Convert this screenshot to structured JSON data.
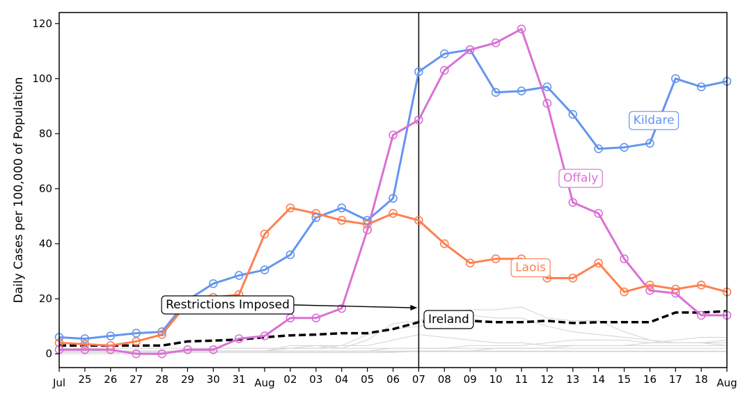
{
  "chart_data": {
    "type": "line",
    "title": "",
    "xlabel": "",
    "ylabel": "Daily Cases per 100,000 of Population",
    "ylim": [
      -5,
      124
    ],
    "yticks": [
      0,
      20,
      40,
      60,
      80,
      100,
      120
    ],
    "grid": false,
    "x": [
      "24 Jul",
      "25 Jul",
      "26 Jul",
      "27 Jul",
      "28 Jul",
      "29 Jul",
      "30 Jul",
      "31 Jul",
      "01 Aug",
      "02 Aug",
      "03 Aug",
      "04 Aug",
      "05 Aug",
      "06 Aug",
      "07 Aug",
      "08 Aug",
      "09 Aug",
      "10 Aug",
      "11 Aug",
      "12 Aug",
      "13 Aug",
      "14 Aug",
      "15 Aug",
      "16 Aug",
      "17 Aug",
      "18 Aug",
      "19 Aug"
    ],
    "xtick_labels": [
      "Jul",
      "25",
      "26",
      "27",
      "28",
      "29",
      "30",
      "31",
      "Aug",
      "02",
      "03",
      "04",
      "05",
      "06",
      "07",
      "08",
      "09",
      "10",
      "11",
      "12",
      "13",
      "14",
      "15",
      "16",
      "17",
      "18",
      "Aug"
    ],
    "series": [
      {
        "name": "Kildare",
        "color": "#6495ED",
        "style": "solid-markers",
        "values": [
          6,
          5.5,
          6.5,
          7.5,
          8,
          19.5,
          25.5,
          28.5,
          30.5,
          36,
          49.5,
          53,
          48.5,
          56.5,
          102.5,
          109,
          110.5,
          95,
          95.5,
          97,
          87,
          74.5,
          75,
          76.5,
          100,
          97,
          99
        ]
      },
      {
        "name": "Laois",
        "color": "#FF7F50",
        "style": "solid-markers",
        "values": [
          4,
          3.5,
          3,
          4.5,
          7,
          18.5,
          20.5,
          21.5,
          43.5,
          53,
          51,
          48.5,
          47,
          51,
          48.5,
          40,
          33,
          34.5,
          34.5,
          27.5,
          27.5,
          33,
          22.5,
          25,
          23.5,
          25,
          22.5
        ]
      },
      {
        "name": "Offaly",
        "color": "#DA70D6",
        "style": "solid-markers",
        "values": [
          1.5,
          1.5,
          1.5,
          0,
          0,
          1.5,
          1.5,
          5.5,
          6.5,
          13,
          13,
          16.5,
          45,
          79.5,
          85,
          103,
          110.5,
          113,
          118,
          91,
          55,
          51,
          34.5,
          23,
          22,
          14,
          14
        ]
      },
      {
        "name": "Ireland",
        "color": "#000000",
        "style": "dashed",
        "values": [
          3,
          3,
          3,
          3,
          3,
          4.5,
          4.8,
          5.2,
          6,
          6.7,
          7,
          7.5,
          7.5,
          9,
          11.5,
          12.5,
          12,
          11.5,
          11.5,
          12,
          11.2,
          11.5,
          11.5,
          11.5,
          15,
          15,
          15.5
        ]
      }
    ],
    "background_series_color": "#D3D3D3",
    "background_series": [
      [
        1,
        1,
        1,
        1,
        1,
        1,
        1,
        1,
        1,
        1,
        1,
        1,
        1,
        1,
        1,
        1,
        1,
        1,
        1,
        1,
        1,
        1,
        1,
        1,
        1,
        1,
        1
      ],
      [
        0.5,
        0.5,
        0.5,
        0.5,
        0.5,
        0.5,
        0.5,
        0.5,
        0.5,
        0.5,
        0.5,
        0.5,
        0.5,
        0.8,
        0.8,
        0.8,
        0.8,
        0.8,
        0.8,
        0.8,
        0.8,
        0.8,
        0.8,
        0.8,
        0.8,
        0.8,
        0.8
      ],
      [
        2,
        2,
        2,
        2,
        2,
        2,
        2,
        2,
        2,
        2,
        2,
        2,
        2,
        2,
        2,
        2,
        2,
        2,
        2,
        2,
        2,
        2,
        2,
        2,
        2,
        2,
        2
      ],
      [
        1,
        1,
        1,
        1,
        1,
        1,
        1,
        1,
        1,
        3,
        3,
        3,
        3,
        5,
        7,
        6,
        5,
        4,
        4,
        3,
        3,
        3,
        3,
        3,
        3,
        3,
        3
      ],
      [
        1,
        1,
        1,
        1,
        1,
        1,
        2,
        2,
        2,
        2,
        3,
        2,
        5,
        11,
        12,
        15,
        16,
        16,
        17,
        13,
        12,
        12,
        8,
        5,
        4,
        4,
        4
      ],
      [
        0,
        0,
        0,
        0,
        0,
        1,
        1,
        1,
        1,
        2,
        2,
        3,
        7,
        9,
        10,
        12,
        14,
        13,
        13,
        10,
        8,
        7,
        6,
        5,
        4,
        4,
        3
      ],
      [
        1,
        1,
        1,
        1,
        1,
        1,
        1,
        1,
        1,
        1,
        1,
        1,
        1,
        2,
        2,
        2,
        3,
        3,
        3,
        4,
        5,
        5,
        5,
        4,
        5,
        6,
        6
      ],
      [
        0.5,
        0.5,
        0.5,
        0.5,
        0.5,
        0.5,
        0.5,
        0.5,
        0.5,
        0.5,
        0.5,
        0.5,
        0.5,
        0.5,
        1,
        1,
        1,
        2,
        2,
        2,
        3,
        3,
        3,
        4,
        4,
        4,
        5
      ]
    ],
    "annotations": {
      "restrictions": "Restrictions Imposed",
      "ireland": "Ireland",
      "kildare": "Kildare",
      "offaly": "Offaly",
      "laois": "Laois"
    },
    "restrictions_date": "07 Aug"
  }
}
